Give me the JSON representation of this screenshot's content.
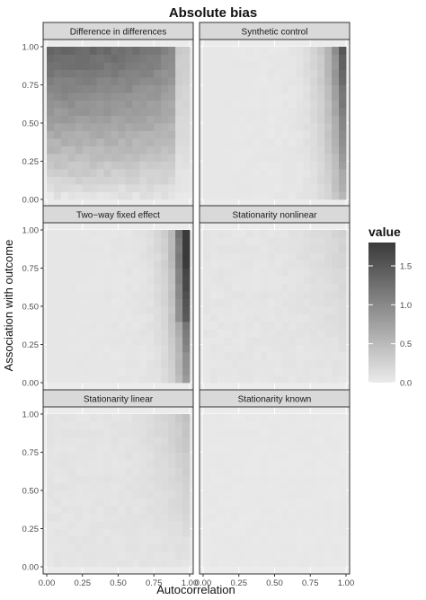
{
  "chart_data": {
    "type": "heatmap",
    "title": "Absolute bias",
    "xlabel": "Autocorrelation",
    "ylabel": "Association with outcome",
    "x_ticks": [
      "0.00",
      "0.25",
      "0.50",
      "0.75",
      "1.00"
    ],
    "y_ticks": [
      "0.00",
      "0.25",
      "0.50",
      "0.75",
      "1.00"
    ],
    "xlim": [
      0,
      1
    ],
    "ylim": [
      0,
      1
    ],
    "grid_resolution": 20,
    "legend": {
      "title": "value",
      "ticks": [
        "0.0",
        "0.5",
        "1.0",
        "1.5"
      ],
      "range": [
        0,
        1.8
      ],
      "low_color": "#ebebeb",
      "high_color": "#3a3a3a",
      "placement": "right"
    },
    "panels": [
      {
        "name": "Difference in differences",
        "pattern": "did"
      },
      {
        "name": "Synthetic control",
        "pattern": "synth"
      },
      {
        "name": "Two−way fixed effect",
        "pattern": "twfe"
      },
      {
        "name": "Stationarity nonlinear",
        "pattern": "nonlin"
      },
      {
        "name": "Stationarity linear",
        "pattern": "lin"
      },
      {
        "name": "Stationarity known",
        "pattern": "known"
      }
    ],
    "grid": true
  }
}
